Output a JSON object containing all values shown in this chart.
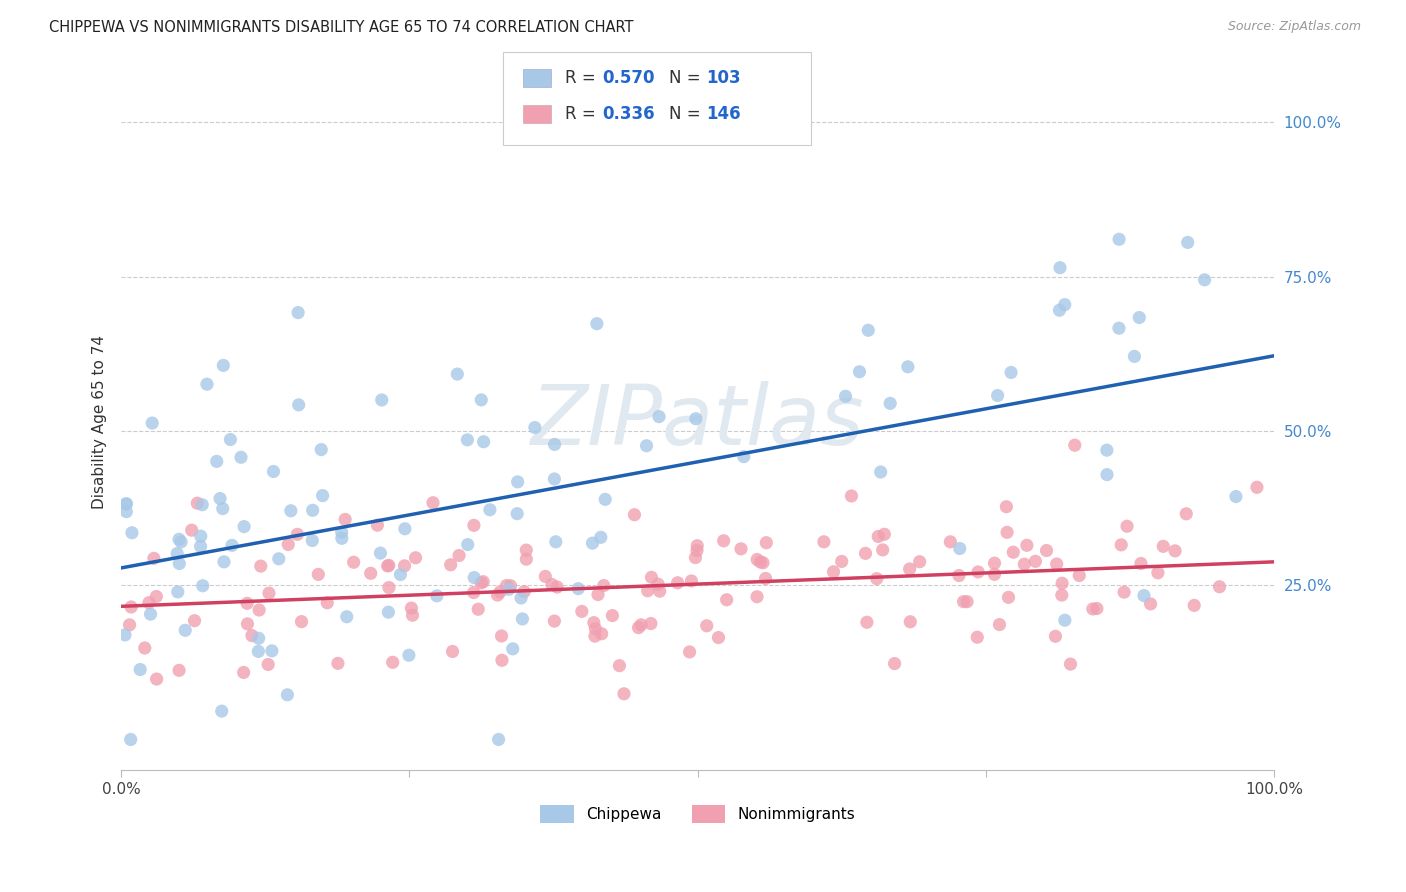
{
  "title": "CHIPPEWA VS NONIMMIGRANTS DISABILITY AGE 65 TO 74 CORRELATION CHART",
  "source": "Source: ZipAtlas.com",
  "ylabel": "Disability Age 65 to 74",
  "chippewa_R": 0.57,
  "chippewa_N": 103,
  "nonimm_R": 0.336,
  "nonimm_N": 146,
  "blue_fill": "#a8c8e8",
  "blue_line": "#2060b0",
  "pink_fill": "#f0a0b0",
  "pink_line": "#d04060",
  "bg_color": "#ffffff",
  "grid_color": "#cccccc",
  "right_tick_color": "#4488cc",
  "seed_chip": 7,
  "seed_nonimm": 13,
  "watermark_color": "#e0e8f0",
  "legend_box_edge": "#cccccc",
  "title_color": "#222222",
  "source_color": "#999999",
  "ylabel_color": "#333333"
}
